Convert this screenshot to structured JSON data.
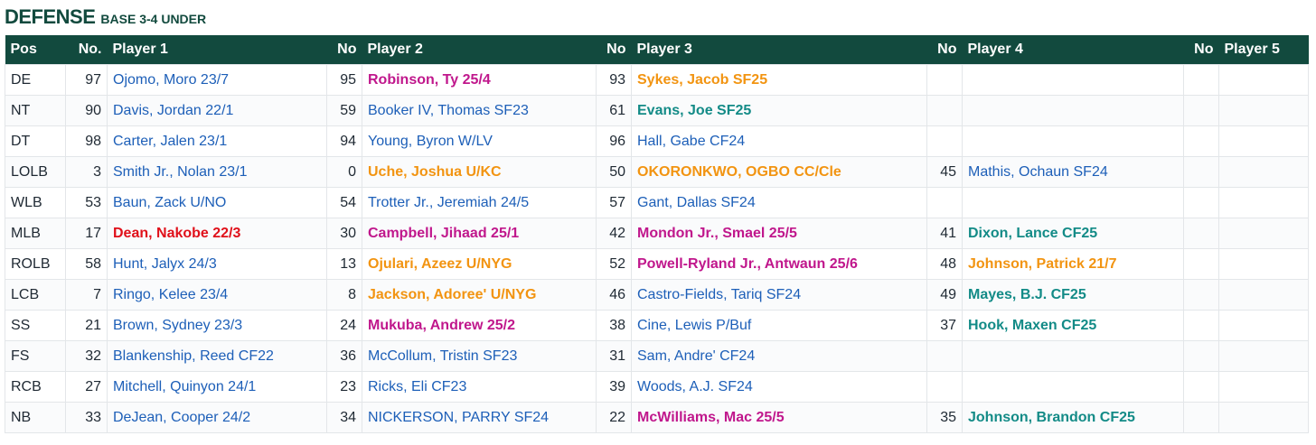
{
  "header": {
    "title": "DEFENSE",
    "subtitle": "BASE 3-4 UNDER"
  },
  "columns": [
    "Pos",
    "No.",
    "Player 1",
    "No",
    "Player 2",
    "No",
    "Player 3",
    "No",
    "Player 4",
    "No",
    "Player 5"
  ],
  "colors": {
    "header_bg": "#124a3e",
    "default": "#1d5fb8",
    "red": "#e0101a",
    "magenta": "#c0178c",
    "orange": "#f29411",
    "teal": "#138b87"
  },
  "rows": [
    {
      "pos": "DE",
      "players": [
        {
          "no": "97",
          "name": "Ojomo, Moro 23/7",
          "style": ""
        },
        {
          "no": "95",
          "name": "Robinson, Ty 25/4",
          "style": "magenta"
        },
        {
          "no": "93",
          "name": "Sykes, Jacob SF25",
          "style": "orange"
        },
        {
          "no": "",
          "name": "",
          "style": ""
        },
        {
          "no": "",
          "name": "",
          "style": ""
        }
      ]
    },
    {
      "pos": "NT",
      "players": [
        {
          "no": "90",
          "name": "Davis, Jordan 22/1",
          "style": ""
        },
        {
          "no": "59",
          "name": "Booker IV, Thomas SF23",
          "style": ""
        },
        {
          "no": "61",
          "name": "Evans, Joe SF25",
          "style": "teal"
        },
        {
          "no": "",
          "name": "",
          "style": ""
        },
        {
          "no": "",
          "name": "",
          "style": ""
        }
      ]
    },
    {
      "pos": "DT",
      "players": [
        {
          "no": "98",
          "name": "Carter, Jalen 23/1",
          "style": ""
        },
        {
          "no": "94",
          "name": "Young, Byron W/LV",
          "style": ""
        },
        {
          "no": "96",
          "name": "Hall, Gabe CF24",
          "style": ""
        },
        {
          "no": "",
          "name": "",
          "style": ""
        },
        {
          "no": "",
          "name": "",
          "style": ""
        }
      ]
    },
    {
      "pos": "LOLB",
      "players": [
        {
          "no": "3",
          "name": "Smith Jr., Nolan 23/1",
          "style": ""
        },
        {
          "no": "0",
          "name": "Uche, Joshua U/KC",
          "style": "orange"
        },
        {
          "no": "50",
          "name": "OKORONKWO, OGBO CC/Cle",
          "style": "orange"
        },
        {
          "no": "45",
          "name": "Mathis, Ochaun SF24",
          "style": ""
        },
        {
          "no": "",
          "name": "",
          "style": ""
        }
      ]
    },
    {
      "pos": "WLB",
      "players": [
        {
          "no": "53",
          "name": "Baun, Zack U/NO",
          "style": ""
        },
        {
          "no": "54",
          "name": "Trotter Jr., Jeremiah 24/5",
          "style": ""
        },
        {
          "no": "57",
          "name": "Gant, Dallas SF24",
          "style": ""
        },
        {
          "no": "",
          "name": "",
          "style": ""
        },
        {
          "no": "",
          "name": "",
          "style": ""
        }
      ]
    },
    {
      "pos": "MLB",
      "players": [
        {
          "no": "17",
          "name": "Dean, Nakobe 22/3",
          "style": "red"
        },
        {
          "no": "30",
          "name": "Campbell, Jihaad 25/1",
          "style": "magenta"
        },
        {
          "no": "42",
          "name": "Mondon Jr., Smael 25/5",
          "style": "magenta"
        },
        {
          "no": "41",
          "name": "Dixon, Lance CF25",
          "style": "teal"
        },
        {
          "no": "",
          "name": "",
          "style": ""
        }
      ]
    },
    {
      "pos": "ROLB",
      "players": [
        {
          "no": "58",
          "name": "Hunt, Jalyx 24/3",
          "style": ""
        },
        {
          "no": "13",
          "name": "Ojulari, Azeez U/NYG",
          "style": "orange"
        },
        {
          "no": "52",
          "name": "Powell-Ryland Jr., Antwaun 25/6",
          "style": "magenta"
        },
        {
          "no": "48",
          "name": "Johnson, Patrick 21/7",
          "style": "orange"
        },
        {
          "no": "",
          "name": "",
          "style": ""
        }
      ]
    },
    {
      "pos": "LCB",
      "players": [
        {
          "no": "7",
          "name": "Ringo, Kelee 23/4",
          "style": ""
        },
        {
          "no": "8",
          "name": "Jackson, Adoree' U/NYG",
          "style": "orange"
        },
        {
          "no": "46",
          "name": "Castro-Fields, Tariq SF24",
          "style": ""
        },
        {
          "no": "49",
          "name": "Mayes, B.J. CF25",
          "style": "teal"
        },
        {
          "no": "",
          "name": "",
          "style": ""
        }
      ]
    },
    {
      "pos": "SS",
      "players": [
        {
          "no": "21",
          "name": "Brown, Sydney 23/3",
          "style": ""
        },
        {
          "no": "24",
          "name": "Mukuba, Andrew 25/2",
          "style": "magenta"
        },
        {
          "no": "38",
          "name": "Cine, Lewis P/Buf",
          "style": ""
        },
        {
          "no": "37",
          "name": "Hook, Maxen CF25",
          "style": "teal"
        },
        {
          "no": "",
          "name": "",
          "style": ""
        }
      ]
    },
    {
      "pos": "FS",
      "players": [
        {
          "no": "32",
          "name": "Blankenship, Reed CF22",
          "style": ""
        },
        {
          "no": "36",
          "name": "McCollum, Tristin SF23",
          "style": ""
        },
        {
          "no": "31",
          "name": "Sam, Andre' CF24",
          "style": ""
        },
        {
          "no": "",
          "name": "",
          "style": ""
        },
        {
          "no": "",
          "name": "",
          "style": ""
        }
      ]
    },
    {
      "pos": "RCB",
      "players": [
        {
          "no": "27",
          "name": "Mitchell, Quinyon 24/1",
          "style": ""
        },
        {
          "no": "23",
          "name": "Ricks, Eli CF23",
          "style": ""
        },
        {
          "no": "39",
          "name": "Woods, A.J. SF24",
          "style": ""
        },
        {
          "no": "",
          "name": "",
          "style": ""
        },
        {
          "no": "",
          "name": "",
          "style": ""
        }
      ]
    },
    {
      "pos": "NB",
      "players": [
        {
          "no": "33",
          "name": "DeJean, Cooper 24/2",
          "style": ""
        },
        {
          "no": "34",
          "name": "NICKERSON, PARRY SF24",
          "style": ""
        },
        {
          "no": "22",
          "name": "McWilliams, Mac 25/5",
          "style": "magenta"
        },
        {
          "no": "35",
          "name": "Johnson, Brandon CF25",
          "style": "teal"
        },
        {
          "no": "",
          "name": "",
          "style": ""
        }
      ]
    }
  ]
}
